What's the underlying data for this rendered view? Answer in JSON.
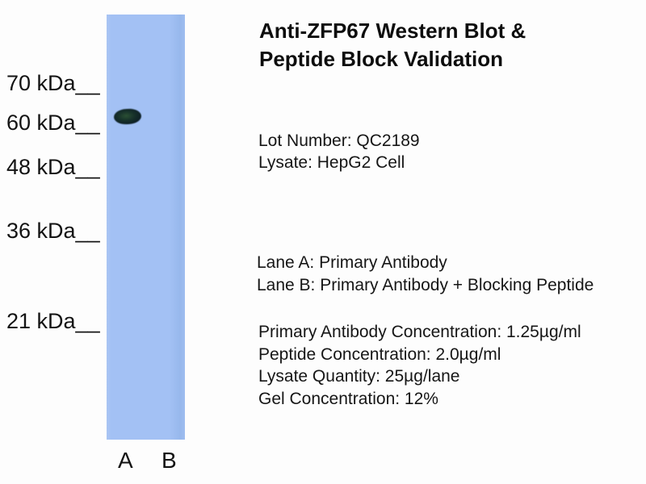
{
  "title": {
    "line1": "Anti-ZFP67 Western Blot &",
    "line2": "Peptide Block Validation"
  },
  "sample_info": {
    "lot_number": "Lot Number: QC2189",
    "lysate": "Lysate: HepG2 Cell"
  },
  "lane_descriptions": {
    "lane_a": "Lane A: Primary Antibody",
    "lane_b": "Lane B: Primary Antibody + Blocking Peptide"
  },
  "conditions": {
    "primary_antibody_concentration": "Primary Antibody Concentration: 1.25µg/ml",
    "peptide_concentration": "Peptide Concentration: 2.0µg/ml",
    "lysate_quantity": "Lysate Quantity: 25µg/lane",
    "gel_concentration": "Gel Concentration: 12%"
  },
  "molecular_weight_markers": [
    {
      "kda": 70,
      "label": "70 kDa__"
    },
    {
      "kda": 60,
      "label": "60 kDa__"
    },
    {
      "kda": 48,
      "label": "48 kDa__"
    },
    {
      "kda": 36,
      "label": "36 kDa__"
    },
    {
      "kda": 21,
      "label": "21 kDa__"
    }
  ],
  "gel": {
    "lane_labels": {
      "a": "A",
      "b": "B"
    },
    "band": {
      "lane": "A",
      "approx_kda": 60
    },
    "colors": {
      "gel": "#a3c1f4",
      "gel_right_edge": "#97b8ec",
      "band_rim": "#0b1b24",
      "band_center": "#2b5034",
      "background": "#fdfdfd",
      "text": "#161616"
    }
  }
}
